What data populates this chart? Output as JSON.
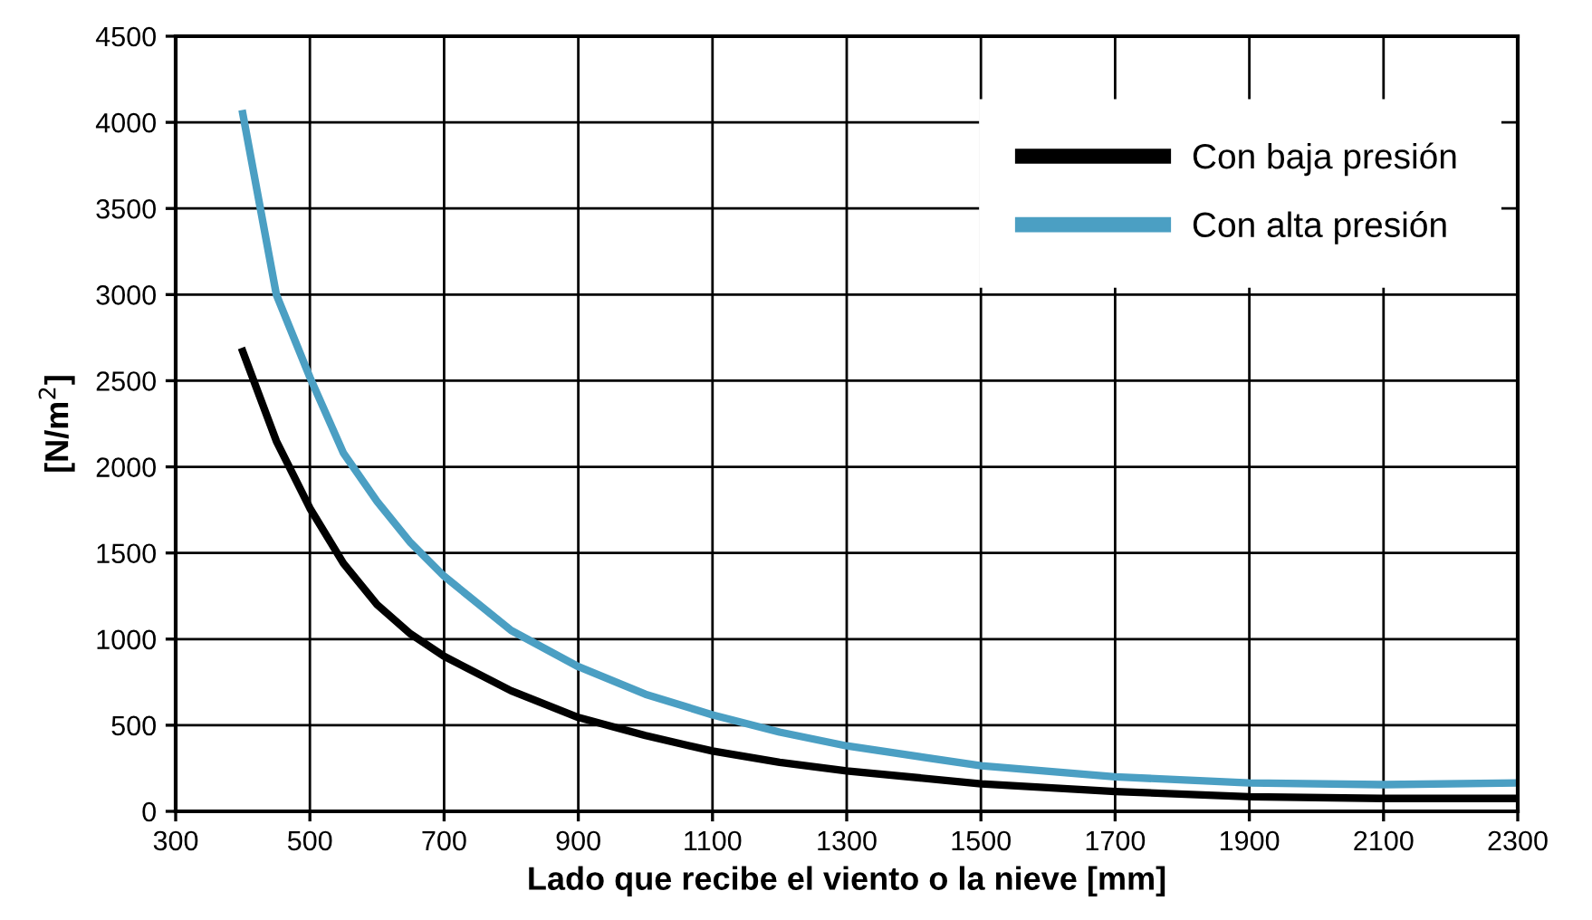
{
  "chart_data": {
    "type": "line",
    "xlabel": "Lado que recibe el viento o la nieve [mm]",
    "ylabel": "[N/m$^{2}$]",
    "x": [
      400,
      450,
      500,
      550,
      600,
      650,
      700,
      800,
      900,
      1000,
      1100,
      1200,
      1300,
      1500,
      1700,
      1900,
      2100,
      2300
    ],
    "series": [
      {
        "name": "Con baja presión",
        "color": "#000000",
        "values": [
          2670,
          2150,
          1760,
          1440,
          1200,
          1030,
          900,
          700,
          545,
          440,
          350,
          285,
          235,
          160,
          115,
          85,
          75,
          75
        ]
      },
      {
        "name": "Con alta presión",
        "color": "#4b9fc3",
        "values": [
          4050,
          3000,
          2520,
          2080,
          1800,
          1560,
          1365,
          1050,
          840,
          680,
          560,
          460,
          380,
          265,
          200,
          165,
          155,
          165
        ]
      }
    ],
    "xlim": [
      300,
      2300
    ],
    "xticks": [
      300,
      500,
      700,
      900,
      1100,
      1300,
      1500,
      1700,
      1900,
      2100,
      2300
    ],
    "ylim": [
      0,
      4500
    ],
    "yticks": [
      0,
      500,
      1000,
      1500,
      2000,
      2500,
      3000,
      3500,
      4000,
      4500
    ],
    "grid": true,
    "legend": "top right",
    "marker": "none",
    "line_style": "solid"
  }
}
